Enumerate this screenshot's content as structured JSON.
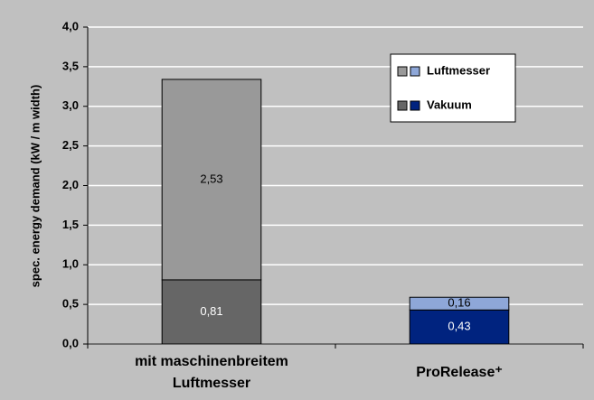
{
  "chart_data": {
    "type": "stacked_bar",
    "y_label": "spec. energy demand (kW / m width)",
    "categories": [
      "mit maschinenbreitem Luftmesser",
      "ProRelease⁺"
    ],
    "series": [
      {
        "name": "Vakuum",
        "colors": [
          "#666666",
          "#00237f"
        ],
        "values": [
          0.81,
          0.43
        ],
        "value_labels": [
          "0,81",
          "0,43"
        ]
      },
      {
        "name": "Luftmesser",
        "colors": [
          "#999999",
          "#8ea7d8"
        ],
        "values": [
          2.53,
          0.16
        ],
        "value_labels": [
          "2,53",
          "0,16"
        ]
      }
    ],
    "ylim": [
      0,
      4
    ],
    "yticks": [
      {
        "value": 0,
        "label": "0,0"
      },
      {
        "value": 0.5,
        "label": "0,5"
      },
      {
        "value": 1,
        "label": "1,0"
      },
      {
        "value": 1.5,
        "label": "1,5"
      },
      {
        "value": 2,
        "label": "2,0"
      },
      {
        "value": 2.5,
        "label": "2,5"
      },
      {
        "value": 3,
        "label": "3,0"
      },
      {
        "value": 3.5,
        "label": "3,5"
      },
      {
        "value": 4,
        "label": "4,0"
      }
    ],
    "grid": true
  }
}
